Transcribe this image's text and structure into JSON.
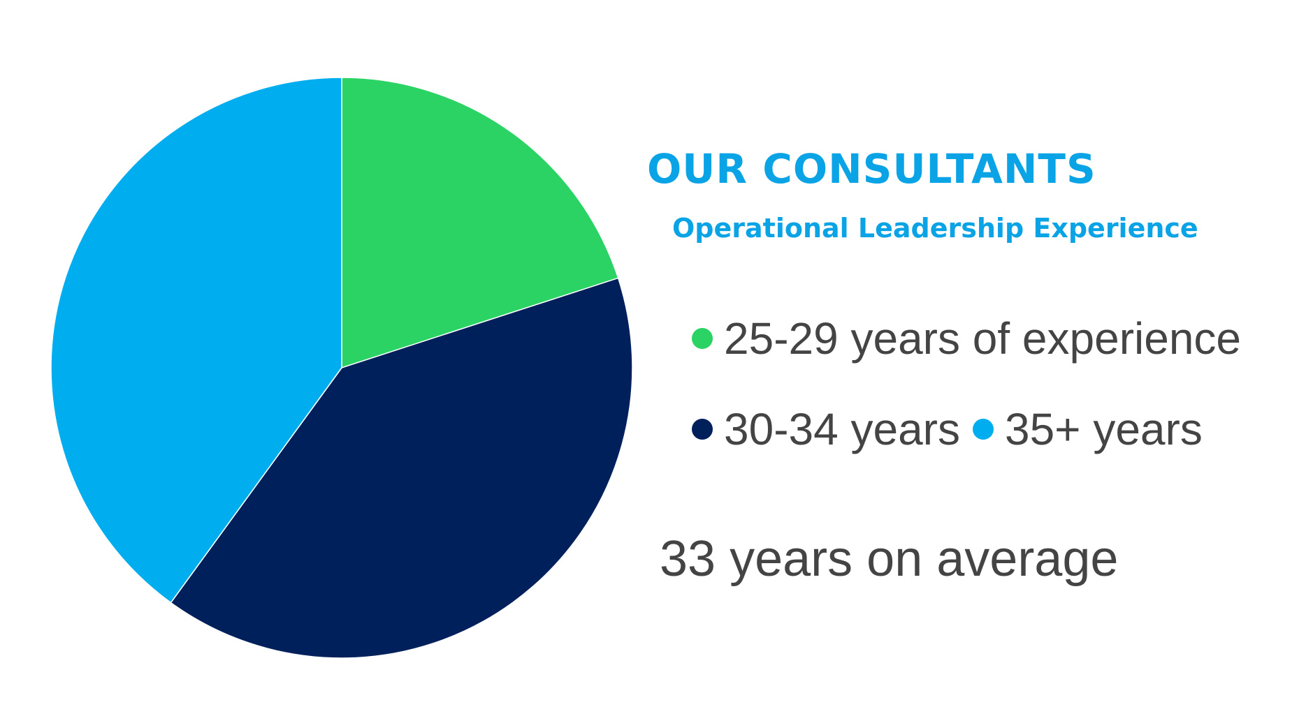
{
  "chart_data": {
    "type": "pie",
    "title": "OUR CONSULTANTS",
    "subtitle": "Operational Leadership Experience",
    "slices": [
      {
        "label": "25-29 years of experience",
        "value": 20,
        "color": "#2ad364"
      },
      {
        "label": "30-34 years",
        "value": 40,
        "color": "#00205c"
      },
      {
        "label": "35+ years",
        "value": 40,
        "color": "#00adef"
      }
    ],
    "legend_placement": "right",
    "annotation": "33 years on average"
  },
  "colors": {
    "title": "#0aa3e6",
    "text": "#444444",
    "background": "#ffffff"
  }
}
